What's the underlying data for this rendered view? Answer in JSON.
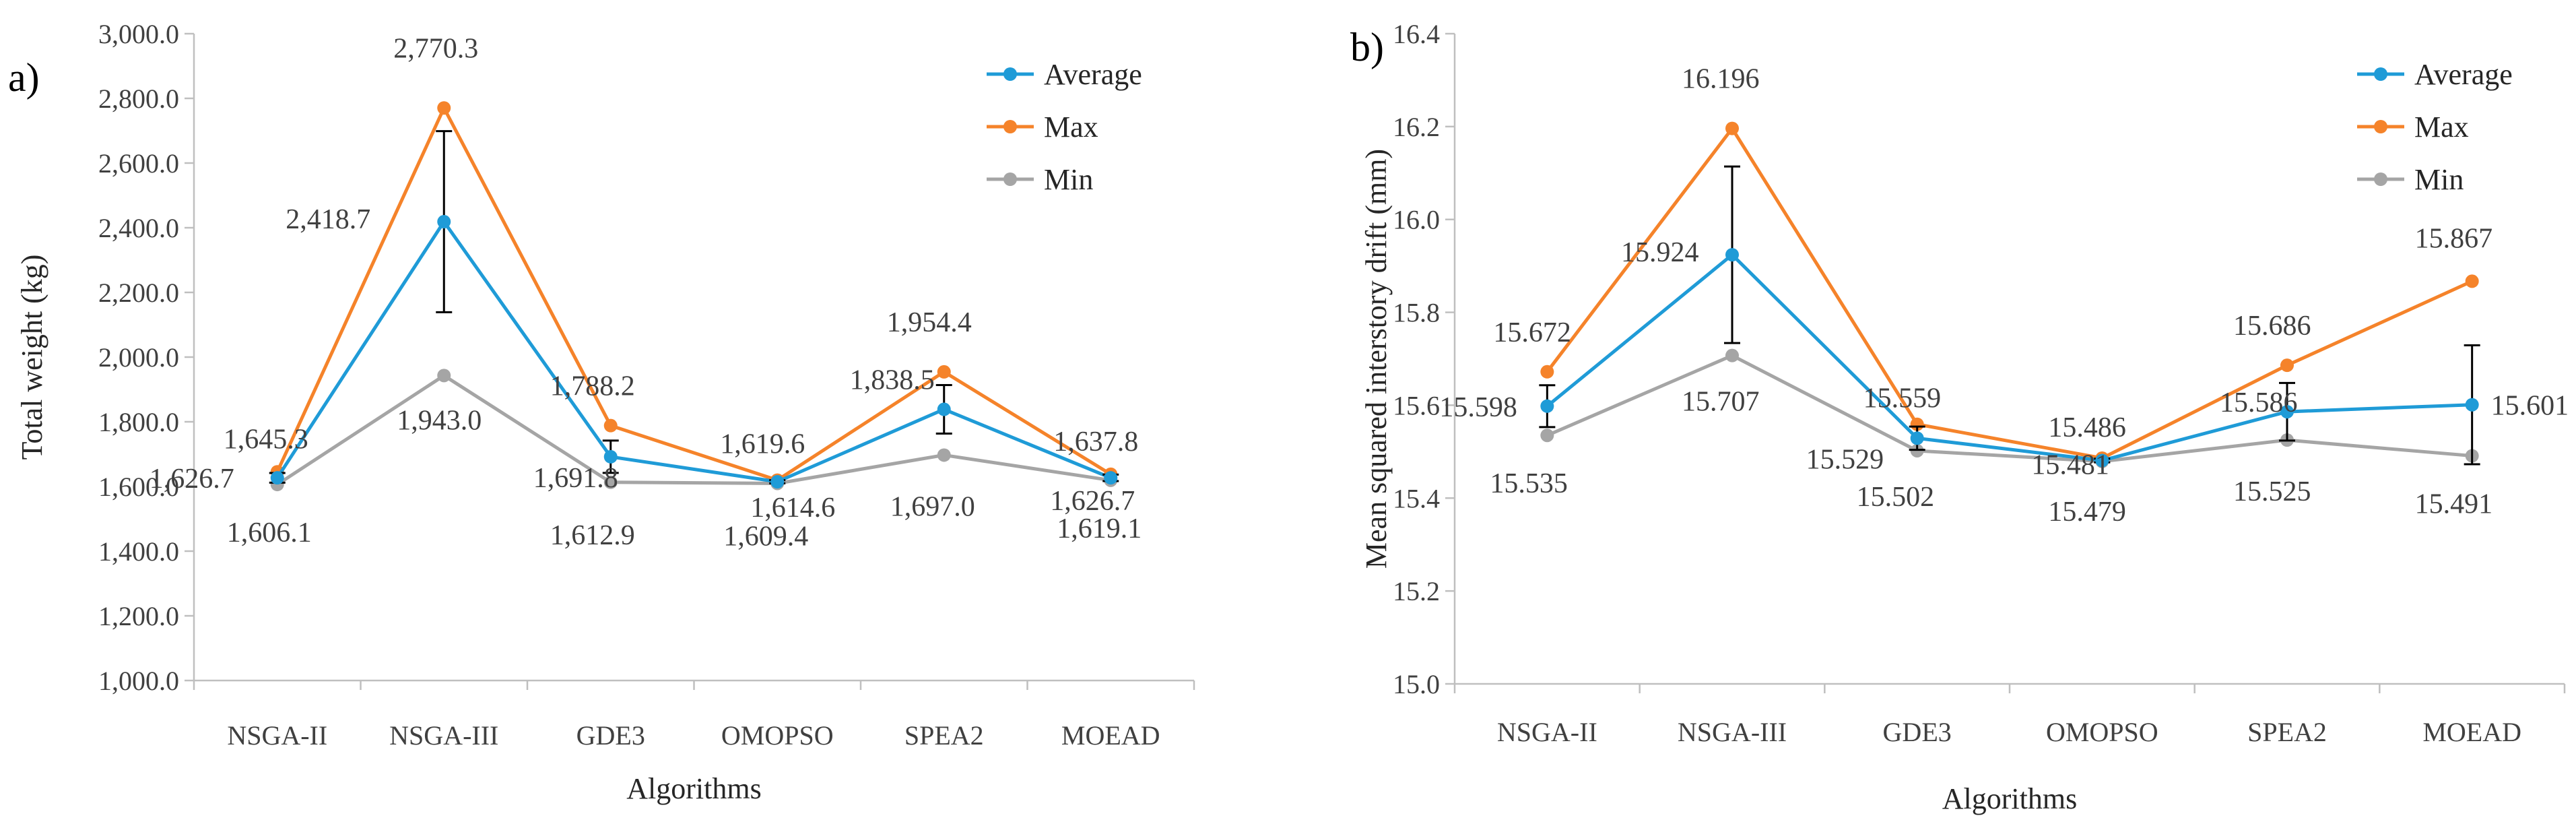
{
  "chart_data": [
    {
      "type": "line",
      "panel_label": "a)",
      "title": "",
      "xlabel": "Algorithms",
      "ylabel": "Total weight (kg)",
      "categories": [
        "NSGA-II",
        "NSGA-III",
        "GDE3",
        "OMOPSO",
        "SPEA2",
        "MOEAD"
      ],
      "ylim": [
        1000,
        3000
      ],
      "yticks": [
        1000,
        1200,
        1400,
        1600,
        1800,
        2000,
        2200,
        2400,
        2600,
        2800,
        3000
      ],
      "ytick_labels": [
        "1,000.0",
        "1,200.0",
        "1,400.0",
        "1,600.0",
        "1,800.0",
        "2,000.0",
        "2,200.0",
        "2,400.0",
        "2,600.0",
        "2,800.0",
        "3,000.0"
      ],
      "legend_position": "top-right",
      "grid": false,
      "series": [
        {
          "name": "Average",
          "color": "#1f9bd7",
          "values": [
            1626.7,
            2418.7,
            1691.8,
            1614.6,
            1838.5,
            1626.7
          ],
          "labels": [
            "1,626.7",
            "2,418.7",
            "1,691.8",
            "1,614.6",
            "1,838.5",
            "1,626.7"
          ],
          "error": [
            15,
            280,
            50,
            5,
            75,
            10
          ]
        },
        {
          "name": "Max",
          "color": "#f5832a",
          "values": [
            1645.3,
            2770.3,
            1788.2,
            1619.6,
            1954.4,
            1637.8
          ],
          "labels": [
            "1,645.3",
            "2,770.3",
            "1,788.2",
            "1,619.6",
            "1,954.4",
            "1,637.8"
          ]
        },
        {
          "name": "Min",
          "color": "#a5a5a5",
          "values": [
            1606.1,
            1943.0,
            1612.9,
            1609.4,
            1697.0,
            1619.1
          ],
          "labels": [
            "1,606.1",
            "1,943.0",
            "1,612.9",
            "1,609.4",
            "1,697.0",
            "1,619.1"
          ]
        }
      ]
    },
    {
      "type": "line",
      "panel_label": "b)",
      "title": "",
      "xlabel": "Algorithms",
      "ylabel": "Mean squared interstory drift (mm)",
      "categories": [
        "NSGA-II",
        "NSGA-III",
        "GDE3",
        "OMOPSO",
        "SPEA2",
        "MOEAD"
      ],
      "ylim": [
        15.0,
        16.4
      ],
      "yticks": [
        15.0,
        15.2,
        15.4,
        15.6,
        15.8,
        16.0,
        16.2,
        16.4
      ],
      "ytick_labels": [
        "15.0",
        "15.2",
        "15.4",
        "15.6",
        "15.8",
        "16.0",
        "16.2",
        "16.4"
      ],
      "legend_position": "top-right",
      "grid": false,
      "series": [
        {
          "name": "Average",
          "color": "#1f9bd7",
          "values": [
            15.598,
            15.924,
            15.529,
            15.481,
            15.586,
            15.601
          ],
          "labels": [
            "15.598",
            "15.924",
            "15.529",
            "15.481",
            "15.586",
            "15.601"
          ],
          "error": [
            0.045,
            0.19,
            0.025,
            0.004,
            0.062,
            0.128
          ]
        },
        {
          "name": "Max",
          "color": "#f5832a",
          "values": [
            15.672,
            16.196,
            15.559,
            15.486,
            15.686,
            15.867
          ],
          "labels": [
            "15.672",
            "16.196",
            "15.559",
            "15.486",
            "15.686",
            "15.867"
          ]
        },
        {
          "name": "Min",
          "color": "#a5a5a5",
          "values": [
            15.535,
            15.707,
            15.502,
            15.479,
            15.525,
            15.491
          ],
          "labels": [
            "15.535",
            "15.707",
            "15.502",
            "15.479",
            "15.525",
            "15.491"
          ]
        }
      ]
    }
  ]
}
